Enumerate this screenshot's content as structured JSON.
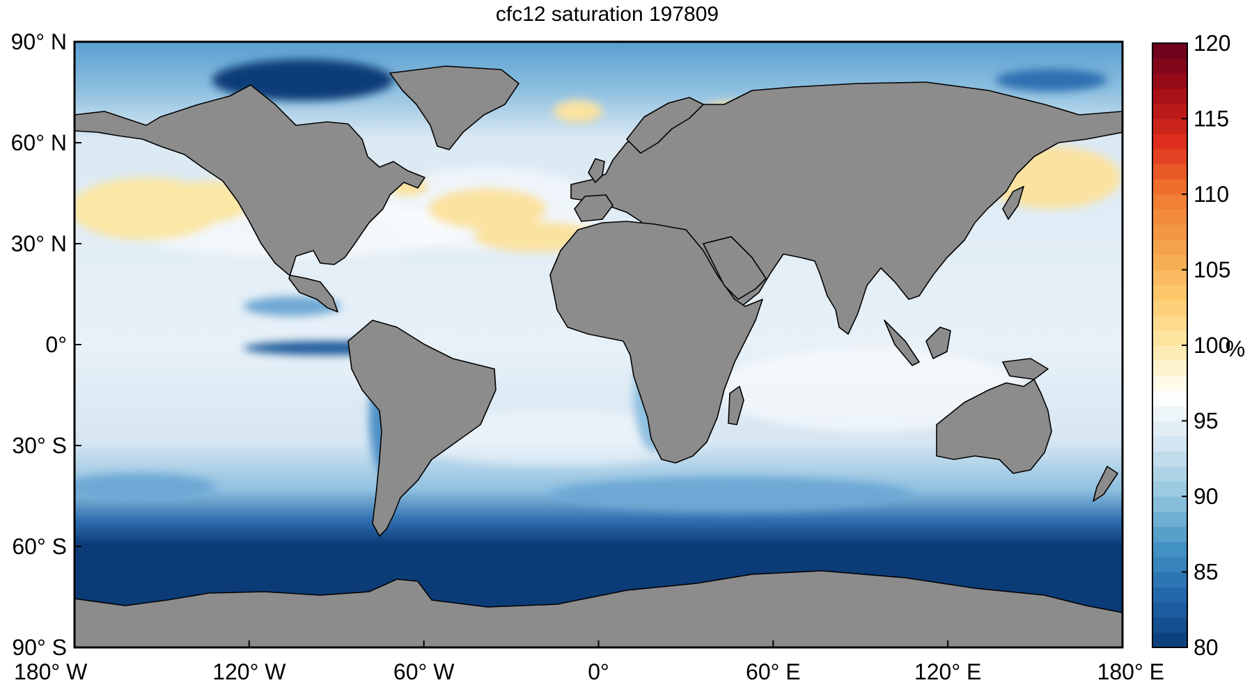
{
  "map": {
    "title": "cfc12 saturation 197809",
    "lat_ticks": [
      {
        "value": 90,
        "label": "90° N"
      },
      {
        "value": 60,
        "label": "60° N"
      },
      {
        "value": 30,
        "label": "30° N"
      },
      {
        "value": 0,
        "label": "0°"
      },
      {
        "value": -30,
        "label": "30° S"
      },
      {
        "value": -60,
        "label": "60° S"
      },
      {
        "value": -90,
        "label": "90° S"
      }
    ],
    "lon_ticks": [
      {
        "value": -180,
        "label": "180° W"
      },
      {
        "value": -120,
        "label": "120° W"
      },
      {
        "value": -60,
        "label": "60° W"
      },
      {
        "value": 0,
        "label": "0°"
      },
      {
        "value": 60,
        "label": "60° E"
      },
      {
        "value": 120,
        "label": "120° E"
      },
      {
        "value": 180,
        "label": "180° E"
      }
    ],
    "lon_range": [
      -180,
      180
    ],
    "lat_range": [
      -90,
      90
    ],
    "land_color": "#8c8c8c",
    "colorbar": {
      "range": [
        80,
        120
      ],
      "ticks": [
        80,
        85,
        90,
        95,
        100,
        105,
        110,
        115,
        120
      ],
      "unit": "%",
      "colors": [
        "#0b3c77",
        "#2166ac",
        "#4393c3",
        "#92c5de",
        "#d1e5f0",
        "#ffffff",
        "#fde9a8",
        "#fdc86b",
        "#f4a14a",
        "#f07a30",
        "#e0301e",
        "#a50f15",
        "#67001f"
      ]
    }
  }
}
